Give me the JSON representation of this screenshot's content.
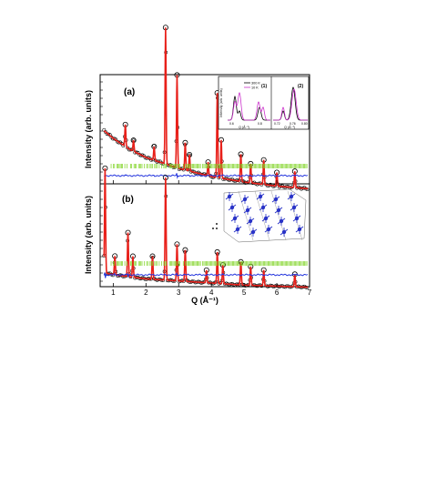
{
  "chart_data": [
    {
      "panel": "(a)",
      "type": "line",
      "ylabel": "Intensity (arb. units)",
      "xlabel": "Q (Å⁻¹)",
      "xlim": [
        0.6,
        7
      ],
      "x_ticks": [
        1,
        2,
        3,
        4,
        5,
        6,
        7
      ],
      "series": [
        {
          "name": "observed",
          "style": "open-circles",
          "color": "#000000"
        },
        {
          "name": "calculated",
          "style": "line",
          "color": "#e8201a"
        },
        {
          "name": "difference",
          "style": "line",
          "color": "#2233dd"
        },
        {
          "name": "Bragg positions",
          "style": "ticks",
          "color": "#7ed321"
        }
      ],
      "background": {
        "q": [
          0.7,
          1.0,
          1.5,
          2.0,
          3.0,
          4.0,
          5.0,
          6.0,
          7.0
        ],
        "level": [
          0.62,
          0.56,
          0.48,
          0.42,
          0.34,
          0.28,
          0.24,
          0.21,
          0.19
        ]
      },
      "peaks": [
        {
          "q": 1.37,
          "h": 0.16
        },
        {
          "q": 1.62,
          "h": 0.08
        },
        {
          "q": 2.25,
          "h": 0.1
        },
        {
          "q": 2.6,
          "h": 1.0
        },
        {
          "q": 2.95,
          "h": 0.68
        },
        {
          "q": 3.2,
          "h": 0.2
        },
        {
          "q": 3.33,
          "h": 0.12
        },
        {
          "q": 3.9,
          "h": 0.1
        },
        {
          "q": 4.18,
          "h": 0.62
        },
        {
          "q": 4.3,
          "h": 0.28
        },
        {
          "q": 4.9,
          "h": 0.2
        },
        {
          "q": 5.2,
          "h": 0.14
        },
        {
          "q": 5.6,
          "h": 0.18
        },
        {
          "q": 6.0,
          "h": 0.1
        },
        {
          "q": 6.55,
          "h": 0.12
        }
      ],
      "inset": {
        "ylabel": "Intensity (arb. units)",
        "xlabel": "Q (Å⁻¹)",
        "legend": [
          "300 K",
          "10 K"
        ],
        "colors": [
          "#000000",
          "#cc33cc"
        ],
        "sub_panels": [
          "(1)",
          "(2)"
        ],
        "x_ticks_1": [
          "0.6",
          "0.8"
        ],
        "x_ticks_2": [
          "0.72",
          "0.76",
          "0.80"
        ]
      }
    },
    {
      "panel": "(b)",
      "type": "line",
      "ylabel": "Intensity (arb. units)",
      "xlabel": "Q (Å⁻¹)",
      "xlim": [
        0.6,
        7
      ],
      "x_ticks": [
        1,
        2,
        3,
        4,
        5,
        6,
        7
      ],
      "series": [
        {
          "name": "observed",
          "style": "open-circles",
          "color": "#000000"
        },
        {
          "name": "calculated",
          "style": "line",
          "color": "#e8201a"
        },
        {
          "name": "difference",
          "style": "line",
          "color": "#2233dd"
        },
        {
          "name": "Bragg positions",
          "style": "ticks",
          "color": "#7ed321"
        }
      ],
      "background": {
        "q": [
          0.7,
          1.0,
          1.5,
          2.0,
          3.0,
          4.0,
          5.0,
          6.0,
          7.0
        ],
        "level": [
          0.3,
          0.28,
          0.26,
          0.24,
          0.22,
          0.2,
          0.18,
          0.17,
          0.16
        ]
      },
      "peaks": [
        {
          "q": 0.75,
          "h": 1.0
        },
        {
          "q": 1.05,
          "h": 0.18
        },
        {
          "q": 1.45,
          "h": 0.42
        },
        {
          "q": 1.6,
          "h": 0.2
        },
        {
          "q": 2.2,
          "h": 0.22
        },
        {
          "q": 2.6,
          "h": 0.98
        },
        {
          "q": 2.95,
          "h": 0.35
        },
        {
          "q": 3.2,
          "h": 0.3
        },
        {
          "q": 3.85,
          "h": 0.12
        },
        {
          "q": 4.18,
          "h": 0.3
        },
        {
          "q": 4.35,
          "h": 0.18
        },
        {
          "q": 4.9,
          "h": 0.22
        },
        {
          "q": 5.2,
          "h": 0.18
        },
        {
          "q": 5.6,
          "h": 0.15
        },
        {
          "q": 6.55,
          "h": 0.12
        }
      ]
    }
  ],
  "labels": {
    "panel_a": "(a)",
    "panel_b": "(b)",
    "ylabel": "Intensity (arb. units)",
    "xlabel": "Q (Å⁻¹)",
    "inset_legend_1": "300 K",
    "inset_legend_2": "10 K",
    "inset_sub_1": "(1)",
    "inset_sub_2": "(2)"
  }
}
